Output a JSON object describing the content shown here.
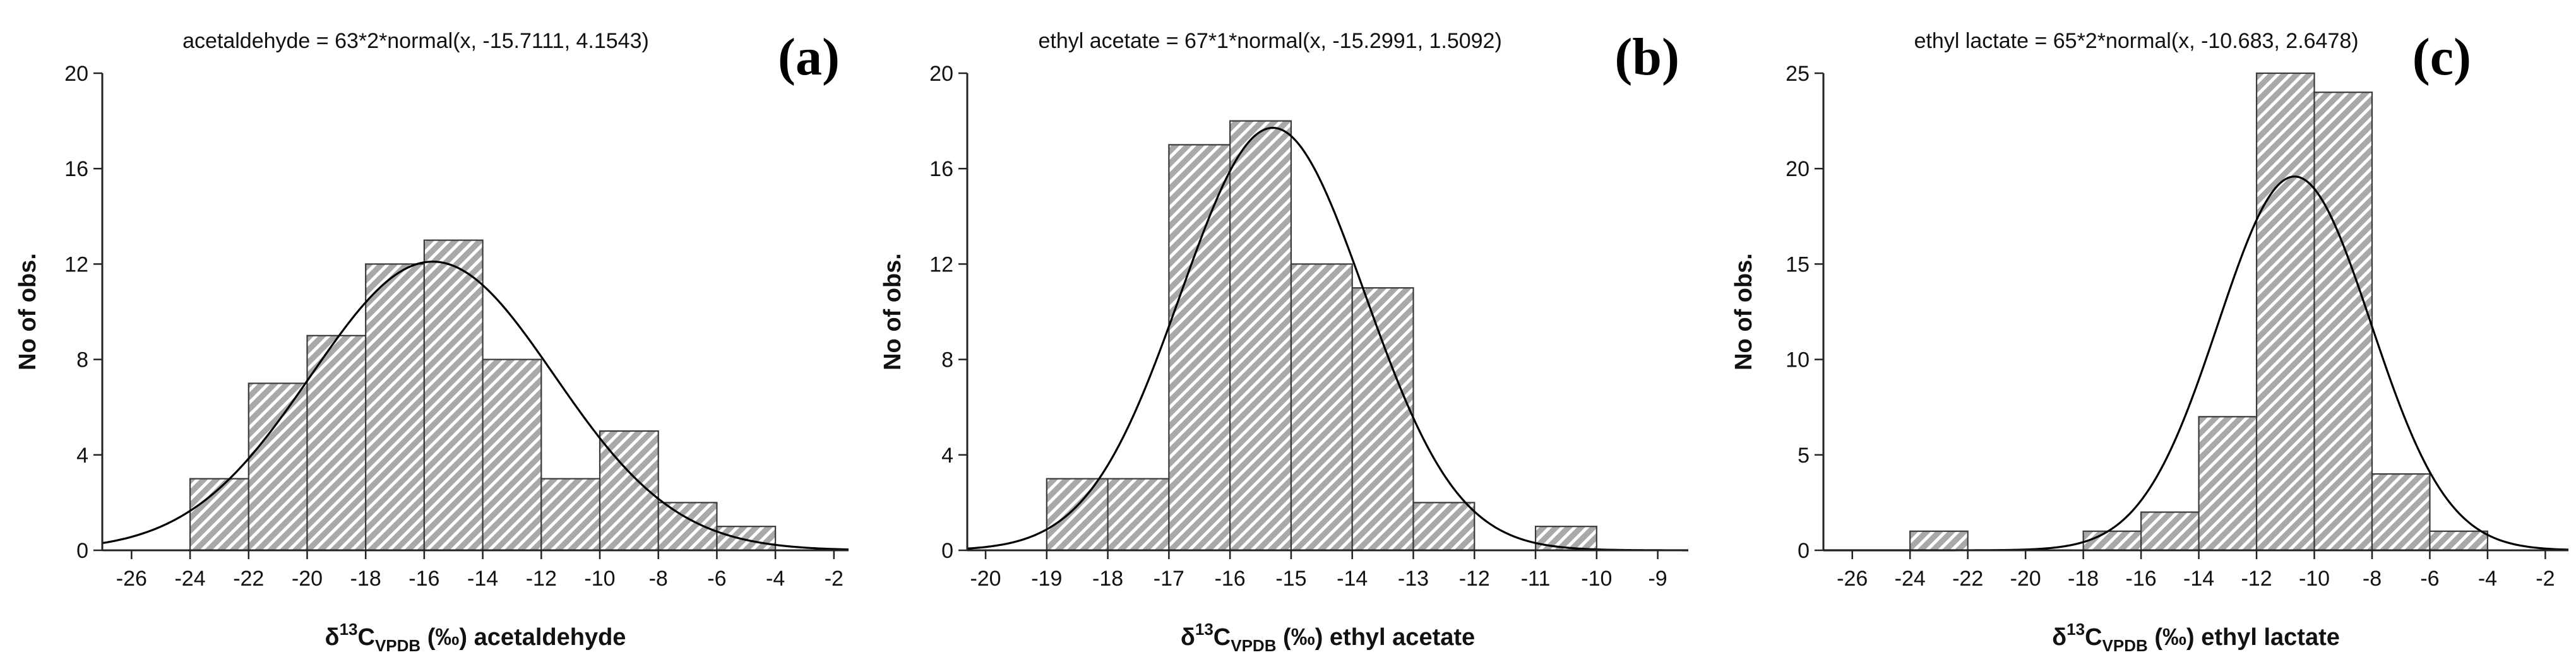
{
  "chart_data": [
    {
      "type": "bar",
      "panel_label": "(a)",
      "title": "acetaldehyde = 63*2*normal(x, -15.7111, 4.1543)",
      "ylabel": "No of obs.",
      "xlabel": {
        "delta": "δ",
        "sup": "13",
        "base": "C",
        "sub": "VPDB",
        "rest": " (‰) acetaldehyde"
      },
      "xlim": [
        -27,
        -1.5
      ],
      "ylim": [
        0,
        20
      ],
      "xticks": [
        -26,
        -24,
        -22,
        -20,
        -18,
        -16,
        -14,
        -12,
        -10,
        -8,
        -6,
        -4,
        -2
      ],
      "xtick_labels": [
        "-26",
        "-24",
        "-22",
        "-20",
        "-18",
        "-16",
        "-14",
        "-12",
        "-10",
        "-8",
        "-6",
        "-4",
        "-2"
      ],
      "yticks": [
        0,
        4,
        8,
        12,
        16,
        20
      ],
      "ytick_labels": [
        "0",
        "4",
        "8",
        "12",
        "16",
        "20"
      ],
      "bins": [
        {
          "x0": -24,
          "x1": -22,
          "count": 3
        },
        {
          "x0": -22,
          "x1": -20,
          "count": 7
        },
        {
          "x0": -20,
          "x1": -18,
          "count": 9
        },
        {
          "x0": -18,
          "x1": -16,
          "count": 12
        },
        {
          "x0": -16,
          "x1": -14,
          "count": 13
        },
        {
          "x0": -14,
          "x1": -12,
          "count": 8
        },
        {
          "x0": -12,
          "x1": -10,
          "count": 3
        },
        {
          "x0": -10,
          "x1": -8,
          "count": 5
        },
        {
          "x0": -8,
          "x1": -6,
          "count": 2
        },
        {
          "x0": -6,
          "x1": -4,
          "count": 1
        }
      ],
      "normal_fit": {
        "n": 63,
        "bin_width": 2,
        "mean": -15.7111,
        "sd": 4.1543
      }
    },
    {
      "type": "bar",
      "panel_label": "(b)",
      "title": "ethyl acetate = 67*1*normal(x, -15.2991, 1.5092)",
      "ylabel": "No of obs.",
      "xlabel": {
        "delta": "δ",
        "sup": "13",
        "base": "C",
        "sub": "VPDB",
        "rest": " (‰) ethyl acetate"
      },
      "xlim": [
        -20.3,
        -8.5
      ],
      "ylim": [
        0,
        20
      ],
      "xticks": [
        -20,
        -19,
        -18,
        -17,
        -16,
        -15,
        -14,
        -13,
        -12,
        -11,
        -10,
        -9
      ],
      "xtick_labels": [
        "-20",
        "-19",
        "-18",
        "-17",
        "-16",
        "-15",
        "-14",
        "-13",
        "-12",
        "-11",
        "-10",
        "-9"
      ],
      "yticks": [
        0,
        4,
        8,
        12,
        16,
        20
      ],
      "ytick_labels": [
        "0",
        "4",
        "8",
        "12",
        "16",
        "20"
      ],
      "bins": [
        {
          "x0": -19,
          "x1": -18,
          "count": 3
        },
        {
          "x0": -18,
          "x1": -17,
          "count": 3
        },
        {
          "x0": -17,
          "x1": -16,
          "count": 17
        },
        {
          "x0": -16,
          "x1": -15,
          "count": 18
        },
        {
          "x0": -15,
          "x1": -14,
          "count": 12
        },
        {
          "x0": -14,
          "x1": -13,
          "count": 11
        },
        {
          "x0": -13,
          "x1": -12,
          "count": 2
        },
        {
          "x0": -12,
          "x1": -11,
          "count": 0
        },
        {
          "x0": -11,
          "x1": -10,
          "count": 1
        }
      ],
      "normal_fit": {
        "n": 67,
        "bin_width": 1,
        "mean": -15.2991,
        "sd": 1.5092
      }
    },
    {
      "type": "bar",
      "panel_label": "(c)",
      "title": "ethyl lactate = 65*2*normal(x, -10.683, 2.6478)",
      "ylabel": "No of obs.",
      "xlabel": {
        "delta": "δ",
        "sup": "13",
        "base": "C",
        "sub": "VPDB",
        "rest": " (‰) ethyl lactate"
      },
      "xlim": [
        -27,
        -1.2
      ],
      "ylim": [
        0,
        25
      ],
      "xticks": [
        -26,
        -24,
        -22,
        -20,
        -18,
        -16,
        -14,
        -12,
        -10,
        -8,
        -6,
        -4,
        -2
      ],
      "xtick_labels": [
        "-26",
        "-24",
        "-22",
        "-20",
        "-18",
        "-16",
        "-14",
        "-12",
        "-10",
        "-8",
        "-6",
        "-4",
        "-2"
      ],
      "yticks": [
        0,
        5,
        10,
        15,
        20,
        25
      ],
      "ytick_labels": [
        "0",
        "5",
        "10",
        "15",
        "20",
        "25"
      ],
      "bins": [
        {
          "x0": -24,
          "x1": -22,
          "count": 1
        },
        {
          "x0": -18,
          "x1": -16,
          "count": 1
        },
        {
          "x0": -16,
          "x1": -14,
          "count": 2
        },
        {
          "x0": -14,
          "x1": -12,
          "count": 7
        },
        {
          "x0": -12,
          "x1": -10,
          "count": 25
        },
        {
          "x0": -10,
          "x1": -8,
          "count": 24
        },
        {
          "x0": -8,
          "x1": -6,
          "count": 4
        },
        {
          "x0": -6,
          "x1": -4,
          "count": 1
        }
      ],
      "normal_fit": {
        "n": 65,
        "bin_width": 2,
        "mean": -10.683,
        "sd": 2.6478
      }
    }
  ],
  "style": {
    "bar_fill": "#a9a9a9",
    "bar_hatch": "#ffffff",
    "bar_edge": "#3a3a3a",
    "axis": "#222222",
    "curve": "#000000"
  }
}
